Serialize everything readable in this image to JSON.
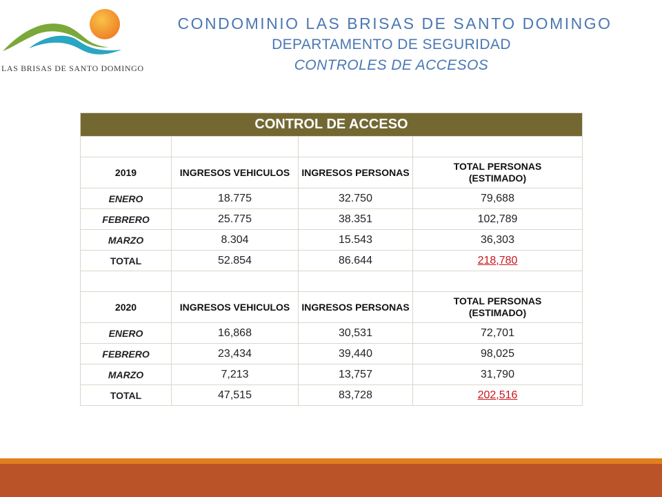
{
  "logo": {
    "text": "LAS BRISAS DE SANTO DOMINGO"
  },
  "header": {
    "line1": "CONDOMINIO LAS  BRISAS DE SANTO DOMINGO",
    "line2": "DEPARTAMENTO DE SEGURIDAD",
    "line3": "CONTROLES DE ACCESOS"
  },
  "table": {
    "title": "CONTROL DE ACCESO",
    "sections": [
      {
        "year": "2019",
        "col1": "INGRESOS VEHICULOS",
        "col2": "INGRESOS PERSONAS",
        "col3a": "TOTAL PERSONAS",
        "col3b": "(ESTIMADO)",
        "rows": [
          {
            "label": "ENERO",
            "vehiculos": "18.775",
            "personas": "32.750",
            "total": "79,688"
          },
          {
            "label": "FEBRERO",
            "vehiculos": "25.775",
            "personas": "38.351",
            "total": "102,789"
          },
          {
            "label": "MARZO",
            "vehiculos": "8.304",
            "personas": "15.543",
            "total": "36,303"
          },
          {
            "label": "TOTAL",
            "vehiculos": "52.854",
            "personas": "86.644",
            "total": "218,780"
          }
        ]
      },
      {
        "year": "2020",
        "col1": "INGRESOS VEHICULOS",
        "col2": "INGRESOS PERSONAS",
        "col3a": "TOTAL PERSONAS",
        "col3b": "(ESTIMADO)",
        "rows": [
          {
            "label": "ENERO",
            "vehiculos": "16,868",
            "personas": "30,531",
            "total": "72,701"
          },
          {
            "label": "FEBRERO",
            "vehiculos": "23,434",
            "personas": "39,440",
            "total": "98,025"
          },
          {
            "label": "MARZO",
            "vehiculos": "7,213",
            "personas": "13,757",
            "total": "31,790"
          },
          {
            "label": "TOTAL",
            "vehiculos": "47,515",
            "personas": "83,728",
            "total": "202,516"
          }
        ]
      }
    ]
  },
  "colors": {
    "title_bg": "#736832",
    "header_text": "#4a77b2",
    "accent_red": "#c8161d",
    "footer_orange": "#e07f1f",
    "footer_rust": "#bb5329"
  }
}
